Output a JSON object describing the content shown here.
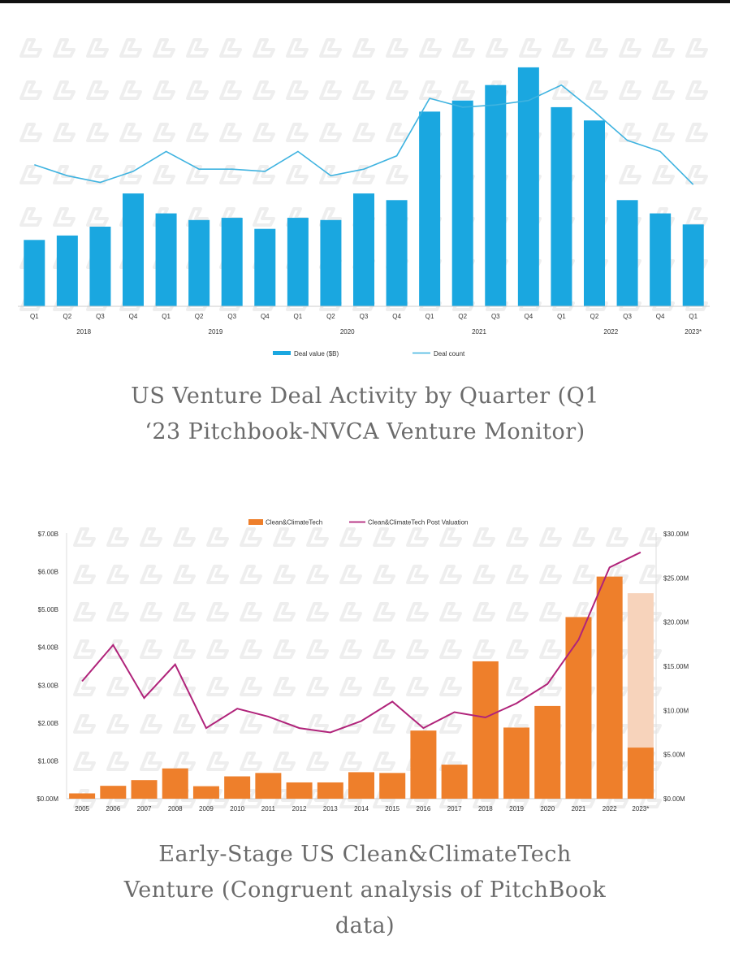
{
  "colors": {
    "bar1": "#1aa7e0",
    "line1": "#3fb3e0",
    "bar2": "#ee7f2b",
    "bar2_estimate": "#f7d3bb",
    "line2": "#b0237a",
    "watermark": "#eeeeee"
  },
  "captions": {
    "first_line1": "US Venture Deal Activity by Quarter (Q1",
    "first_line2": "‘23 Pitchbook-NVCA Venture Monitor)",
    "second_line1": "Early-Stage US Clean&ClimateTech",
    "second_line2": "Venture (Congruent analysis of PitchBook",
    "second_line3": "data)"
  },
  "chart_data": [
    {
      "type": "bar",
      "quarters": [
        "Q1",
        "Q2",
        "Q3",
        "Q4",
        "Q1",
        "Q2",
        "Q3",
        "Q4",
        "Q1",
        "Q2",
        "Q3",
        "Q4",
        "Q1",
        "Q2",
        "Q3",
        "Q4",
        "Q1",
        "Q2",
        "Q3",
        "Q4",
        "Q1"
      ],
      "years": [
        {
          "label": "2018",
          "start": 0,
          "end": 3
        },
        {
          "label": "2019",
          "start": 4,
          "end": 7
        },
        {
          "label": "2020",
          "start": 8,
          "end": 11
        },
        {
          "label": "2021",
          "start": 12,
          "end": 15
        },
        {
          "label": "2022",
          "start": 16,
          "end": 19
        },
        {
          "label": "2023*",
          "start": 20,
          "end": 20
        }
      ],
      "series": [
        {
          "name": "Deal value ($B)",
          "type": "bar",
          "values": [
            30,
            32,
            36,
            51,
            42,
            39,
            40,
            35,
            40,
            39,
            51,
            48,
            88,
            93,
            100,
            108,
            90,
            84,
            48,
            42,
            37
          ]
        },
        {
          "name": "Deal count",
          "type": "line",
          "values": [
            64,
            59,
            56,
            61,
            70,
            62,
            62,
            61,
            70,
            59,
            62,
            68,
            94,
            90,
            91,
            93,
            100,
            88,
            75,
            70,
            55
          ]
        }
      ],
      "ylim": [
        0,
        112
      ],
      "grid": false,
      "legend": "bottom"
    },
    {
      "type": "bar",
      "categories": [
        "2005",
        "2006",
        "2007",
        "2008",
        "2009",
        "2010",
        "2011",
        "2012",
        "2013",
        "2014",
        "2015",
        "2016",
        "2017",
        "2018",
        "2019",
        "2020",
        "2021",
        "2022",
        "2023*"
      ],
      "series": [
        {
          "name": "Clean&ClimateTech",
          "type": "bar",
          "axis": "left",
          "values": [
            0.14,
            0.34,
            0.49,
            0.8,
            0.33,
            0.59,
            0.68,
            0.43,
            0.43,
            0.7,
            0.68,
            1.8,
            0.9,
            3.63,
            1.88,
            2.45,
            4.8,
            5.87,
            1.35
          ]
        },
        {
          "name": "Clean&ClimateTech Post Valuation",
          "type": "line",
          "axis": "right",
          "values": [
            13.3,
            17.4,
            11.4,
            15.2,
            8.0,
            10.2,
            9.3,
            8.0,
            7.5,
            8.8,
            11.0,
            8.0,
            9.8,
            9.2,
            10.8,
            13.0,
            18.0,
            26.2,
            27.9
          ]
        }
      ],
      "estimate_2023_total": 5.43,
      "y_left": {
        "ylim": [
          0,
          7
        ],
        "ticks": [
          "$0.00M",
          "$1.00B",
          "$2.00B",
          "$3.00B",
          "$4.00B",
          "$5.00B",
          "$6.00B",
          "$7.00B"
        ]
      },
      "y_right": {
        "ylim": [
          0,
          30
        ],
        "ticks": [
          "$0.00M",
          "$5.00M",
          "$10.00M",
          "$15.00M",
          "$20.00M",
          "$25.00M",
          "$30.00M"
        ]
      },
      "grid": false,
      "legend": "top"
    }
  ]
}
